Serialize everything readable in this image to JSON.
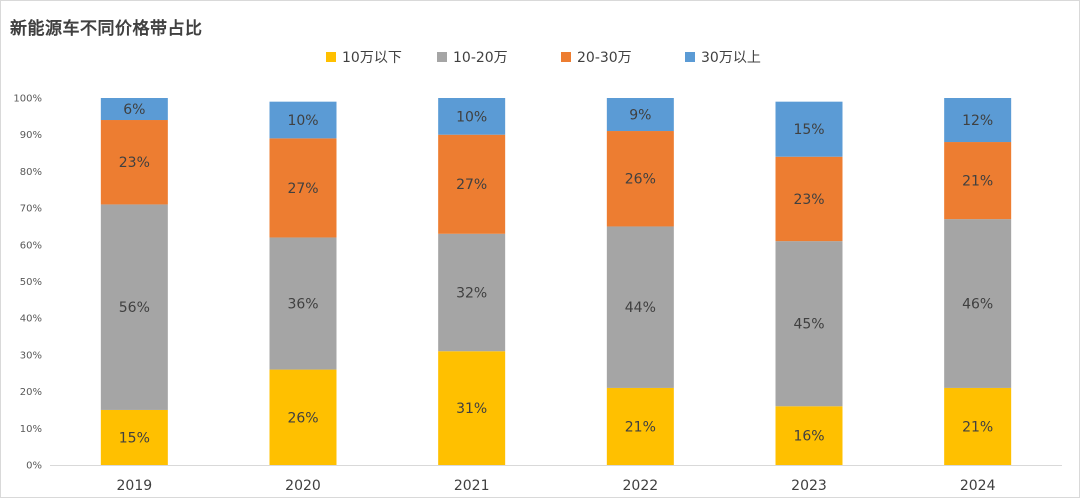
{
  "chart_data": {
    "type": "bar",
    "stacked": true,
    "title": "新能源车不同价格带占比",
    "categories": [
      "2019",
      "2020",
      "2021",
      "2022",
      "2023",
      "2024"
    ],
    "series": [
      {
        "name": "10万以下",
        "values": [
          15,
          26,
          31,
          21,
          16,
          21
        ]
      },
      {
        "name": "10-20万",
        "values": [
          56,
          36,
          32,
          44,
          45,
          46
        ]
      },
      {
        "name": "20-30万",
        "values": [
          23,
          27,
          27,
          26,
          23,
          21
        ]
      },
      {
        "name": "30万以上",
        "values": [
          6,
          10,
          10,
          9,
          15,
          12
        ]
      }
    ],
    "colors": [
      "#FFC000",
      "#A5A5A5",
      "#ED7D31",
      "#5B9BD5"
    ],
    "ylim": [
      0,
      100
    ],
    "yticks": [
      "0%",
      "10%",
      "20%",
      "30%",
      "40%",
      "50%",
      "60%",
      "70%",
      "80%",
      "90%",
      "100%"
    ],
    "legend_position": "top",
    "value_suffix": "%",
    "gridlines": false
  }
}
